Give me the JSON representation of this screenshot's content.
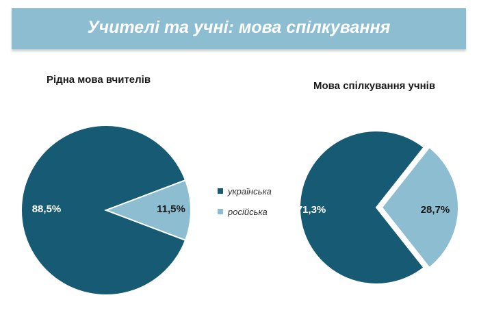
{
  "header": {
    "title": "Учителі та учні: мова спілкування"
  },
  "legend": [
    {
      "label": "українська",
      "color": "#175a73"
    },
    {
      "label": "російська",
      "color": "#8cbdd0"
    }
  ],
  "chart_data": [
    {
      "type": "pie",
      "title": "Рідна мова вчителів",
      "categories": [
        "українська",
        "російська"
      ],
      "values": [
        88.5,
        11.5
      ],
      "labels": [
        "88,5%",
        "11,5%"
      ],
      "colors": [
        "#175a73",
        "#8cbdd0"
      ]
    },
    {
      "type": "pie",
      "title": "Мова спілкування учнів",
      "categories": [
        "українська",
        "російська"
      ],
      "values": [
        71.3,
        28.7
      ],
      "labels": [
        "71,3%",
        "28,7%"
      ],
      "colors": [
        "#175a73",
        "#8cbdd0"
      ]
    }
  ]
}
